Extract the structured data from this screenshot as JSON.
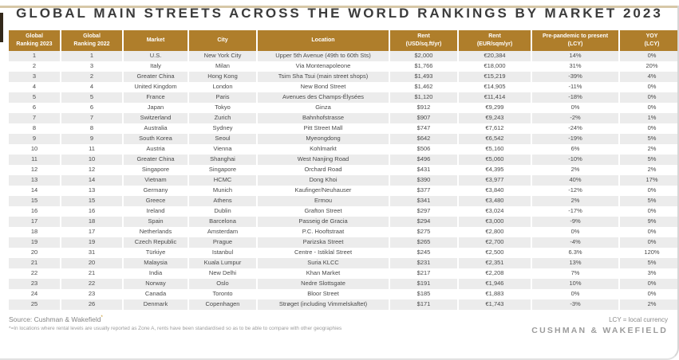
{
  "page": {
    "title": "GLOBAL MAIN STREETS ACROSS THE WORLD RANKINGS BY MARKET 2023"
  },
  "colors": {
    "header_bg": "#af7e2b",
    "stripe": "#ececec",
    "accent": "#c69214"
  },
  "table": {
    "columns": [
      {
        "line1": "Global",
        "line2": "Ranking 2023"
      },
      {
        "line1": "Global",
        "line2": "Ranking 2022"
      },
      {
        "line1": "Market",
        "line2": ""
      },
      {
        "line1": "City",
        "line2": ""
      },
      {
        "line1": "Location",
        "line2": ""
      },
      {
        "line1": "Rent",
        "line2": "(USD/sq.ft/yr)"
      },
      {
        "line1": "Rent",
        "line2": "(EUR/sqm/yr)"
      },
      {
        "line1": "Pre-pandemic to present",
        "line2": "(LCY)"
      },
      {
        "line1": "YOY",
        "line2": "(LCY)"
      }
    ],
    "rows": [
      [
        "1",
        "1",
        "U.S.",
        "New York City",
        "Upper 5th Avenue (49th to 60th Sts)",
        "$2,000",
        "€20,384",
        "14%",
        "0%"
      ],
      [
        "2",
        "3",
        "Italy",
        "Milan",
        "Via Montenapoleone",
        "$1,766",
        "€18,000",
        "31%",
        "20%"
      ],
      [
        "3",
        "2",
        "Greater China",
        "Hong Kong",
        "Tsim Sha Tsui (main street shops)",
        "$1,493",
        "€15,219",
        "-39%",
        "4%"
      ],
      [
        "4",
        "4",
        "United Kingdom",
        "London",
        "New Bond Street",
        "$1,462",
        "€14,905",
        "-11%",
        "0%"
      ],
      [
        "5",
        "5",
        "France",
        "Paris",
        "Avenues des Champs-Élysées",
        "$1,120",
        "€11,414",
        "-18%",
        "0%"
      ],
      [
        "6",
        "6",
        "Japan",
        "Tokyo",
        "Ginza",
        "$912",
        "€9,299",
        "0%",
        "0%"
      ],
      [
        "7",
        "7",
        "Switzerland",
        "Zurich",
        "Bahnhofstrasse",
        "$907",
        "€9,243",
        "-2%",
        "1%"
      ],
      [
        "8",
        "8",
        "Australia",
        "Sydney",
        "Pitt Street Mall",
        "$747",
        "€7,612",
        "-24%",
        "0%"
      ],
      [
        "9",
        "9",
        "South Korea",
        "Seoul",
        "Myeongdong",
        "$642",
        "€6,542",
        "-19%",
        "5%"
      ],
      [
        "10",
        "11",
        "Austria",
        "Vienna",
        "Kohlmarkt",
        "$506",
        "€5,160",
        "6%",
        "2%"
      ],
      [
        "11",
        "10",
        "Greater China",
        "Shanghai",
        "West Nanjing Road",
        "$496",
        "€5,060",
        "-10%",
        "5%"
      ],
      [
        "12",
        "12",
        "Singapore",
        "Singapore",
        "Orchard Road",
        "$431",
        "€4,395",
        "2%",
        "2%"
      ],
      [
        "13",
        "14",
        "Vietnam",
        "HCMC",
        "Dong Khoi",
        "$390",
        "€3,977",
        "40%",
        "17%"
      ],
      [
        "14",
        "13",
        "Germany",
        "Munich",
        "Kaufinger/Neuhauser",
        "$377",
        "€3,840",
        "-12%",
        "0%"
      ],
      [
        "15",
        "15",
        "Greece",
        "Athens",
        "Ermou",
        "$341",
        "€3,480",
        "2%",
        "5%"
      ],
      [
        "16",
        "16",
        "Ireland",
        "Dublin",
        "Grafton Street",
        "$297",
        "€3,024",
        "-17%",
        "0%"
      ],
      [
        "17",
        "18",
        "Spain",
        "Barcelona",
        "Passeig de Gracia",
        "$294",
        "€3,000",
        "-9%",
        "9%"
      ],
      [
        "18",
        "17",
        "Netherlands",
        "Amsterdam",
        "P.C. Hooftstraat",
        "$275",
        "€2,800",
        "0%",
        "0%"
      ],
      [
        "19",
        "19",
        "Czech Republic",
        "Prague",
        "Parizska Street",
        "$265",
        "€2,700",
        "-4%",
        "0%"
      ],
      [
        "20",
        "31",
        "Türkiye",
        "Istanbul",
        "Centre - Istiklal Street",
        "$245",
        "€2,500",
        "6.3%",
        "120%"
      ],
      [
        "21",
        "20",
        "Malaysia",
        "Kuala Lumpur",
        "Suria KLCC",
        "$231",
        "€2,351",
        "13%",
        "5%"
      ],
      [
        "22",
        "21",
        "India",
        "New Delhi",
        "Khan Market",
        "$217",
        "€2,208",
        "7%",
        "3%"
      ],
      [
        "23",
        "22",
        "Norway",
        "Oslo",
        "Nedre Slottsgate",
        "$191",
        "€1,946",
        "10%",
        "0%"
      ],
      [
        "24",
        "23",
        "Canada",
        "Toronto",
        "Bloor Street",
        "$185",
        "€1,883",
        "0%",
        "0%"
      ],
      [
        "25",
        "26",
        "Denmark",
        "Copenhagen",
        "Strøget (including Vimmelskaftet)",
        "$171",
        "€1,743",
        "-3%",
        "2%"
      ]
    ]
  },
  "footer": {
    "source": "Source: Cushman & Wakefield",
    "source_superscript": "*",
    "footnote": "*=In locations where rental levels are usually reported as Zone A, rents have been standardised so as to be able to compare with other geographies",
    "lcy_note": "LCY = local currency",
    "brand": "CUSHMAN & WAKEFIELD"
  }
}
